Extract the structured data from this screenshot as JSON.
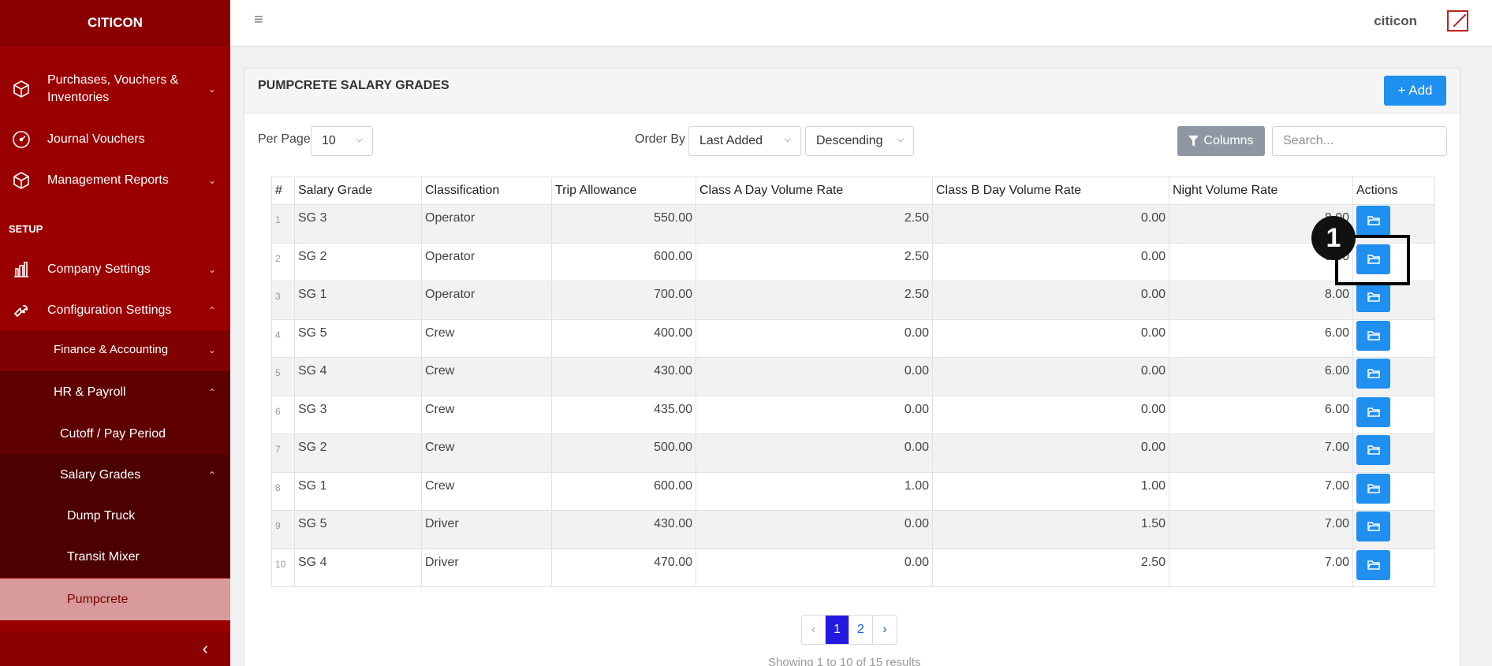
{
  "sidebar": {
    "brand": "CITICON",
    "items": [
      {
        "label": "Purchases, Vouchers & Inventories"
      },
      {
        "label": "Journal Vouchers"
      },
      {
        "label": "Management Reports"
      },
      {
        "label": "Company Settings"
      },
      {
        "label": "Configuration Settings"
      },
      {
        "label": "Finance & Accounting"
      },
      {
        "label": "HR & Payroll"
      },
      {
        "label": "Cutoff / Pay Period"
      },
      {
        "label": "Salary Grades"
      },
      {
        "label": "Dump Truck"
      },
      {
        "label": "Transit Mixer"
      },
      {
        "label": "Pumpcrete"
      }
    ],
    "section_setup": "SETUP",
    "collapse_glyph": "‹"
  },
  "topbar": {
    "menu_glyph": "≡",
    "username": "citicon"
  },
  "card": {
    "title": "PUMPCRETE SALARY GRADES",
    "add_label": "+ Add",
    "per_page_label": "Per Page",
    "per_page_value": "10",
    "order_by_label": "Order By",
    "order_by_value": "Last Added",
    "direction_value": "Descending",
    "columns_label": "Columns",
    "search_placeholder": "Search..."
  },
  "table": {
    "headers": [
      "#",
      "Salary Grade",
      "Classification",
      "Trip Allowance",
      "Class A Day Volume Rate",
      "Class B Day Volume Rate",
      "Night Volume Rate",
      "Actions"
    ],
    "rows": [
      [
        "1",
        "SG 3",
        "Operator",
        "550.00",
        "2.50",
        "0.00",
        "8.00"
      ],
      [
        "2",
        "SG 2",
        "Operator",
        "600.00",
        "2.50",
        "0.00",
        "8.00"
      ],
      [
        "3",
        "SG 1",
        "Operator",
        "700.00",
        "2.50",
        "0.00",
        "8.00"
      ],
      [
        "4",
        "SG 5",
        "Crew",
        "400.00",
        "0.00",
        "0.00",
        "6.00"
      ],
      [
        "5",
        "SG 4",
        "Crew",
        "430.00",
        "0.00",
        "0.00",
        "6.00"
      ],
      [
        "6",
        "SG 3",
        "Crew",
        "435.00",
        "0.00",
        "0.00",
        "6.00"
      ],
      [
        "7",
        "SG 2",
        "Crew",
        "500.00",
        "0.00",
        "0.00",
        "7.00"
      ],
      [
        "8",
        "SG 1",
        "Crew",
        "600.00",
        "1.00",
        "1.00",
        "7.00"
      ],
      [
        "9",
        "SG 5",
        "Driver",
        "430.00",
        "0.00",
        "1.50",
        "7.00"
      ],
      [
        "10",
        "SG 4",
        "Driver",
        "470.00",
        "0.00",
        "2.50",
        "7.00"
      ]
    ]
  },
  "pagination": {
    "prev": "‹",
    "pages": [
      "1",
      "2"
    ],
    "next": "›",
    "current": "1"
  },
  "results_text": "Showing 1 to 10 of 15 results",
  "annotation": {
    "marker_label": "1"
  },
  "colors": {
    "sidebar": "#9b0000",
    "accent": "#1f8ff0",
    "active_page": "#2419e0"
  }
}
